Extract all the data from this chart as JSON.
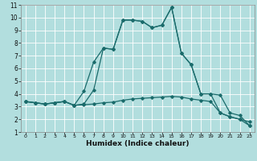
{
  "xlabel": "Humidex (Indice chaleur)",
  "background_color": "#b2dede",
  "grid_color": "#ffffff",
  "line_color": "#1a6b6b",
  "xlim": [
    -0.5,
    23.5
  ],
  "ylim": [
    1,
    11
  ],
  "xticks": [
    0,
    1,
    2,
    3,
    4,
    5,
    6,
    7,
    8,
    9,
    10,
    11,
    12,
    13,
    14,
    15,
    16,
    17,
    18,
    19,
    20,
    21,
    22,
    23
  ],
  "yticks": [
    1,
    2,
    3,
    4,
    5,
    6,
    7,
    8,
    9,
    10,
    11
  ],
  "series1_x": [
    0,
    1,
    2,
    3,
    4,
    5,
    6,
    7,
    8,
    9,
    10,
    11,
    12,
    13,
    14,
    15,
    16,
    17,
    18,
    19,
    20,
    21,
    22,
    23
  ],
  "series1_y": [
    3.4,
    3.3,
    3.2,
    3.3,
    3.4,
    3.1,
    3.15,
    3.2,
    3.3,
    3.35,
    3.5,
    3.6,
    3.65,
    3.7,
    3.75,
    3.8,
    3.75,
    3.6,
    3.5,
    3.4,
    2.5,
    2.2,
    2.0,
    1.8
  ],
  "series2_x": [
    0,
    1,
    2,
    3,
    4,
    5,
    6,
    7,
    8,
    9,
    10,
    11,
    12,
    13,
    14,
    15,
    16,
    17,
    18,
    19,
    20,
    21,
    22,
    23
  ],
  "series2_y": [
    3.4,
    3.3,
    3.2,
    3.3,
    3.4,
    3.1,
    4.2,
    6.5,
    7.6,
    7.5,
    9.8,
    9.8,
    9.7,
    9.2,
    9.4,
    10.8,
    7.2,
    6.3,
    4.0,
    4.0,
    3.9,
    2.5,
    2.3,
    1.5
  ],
  "series3_x": [
    0,
    1,
    2,
    3,
    4,
    5,
    6,
    7,
    8,
    9,
    10,
    11,
    12,
    13,
    14,
    15,
    16,
    17,
    18,
    19,
    20,
    21,
    22,
    23
  ],
  "series3_y": [
    3.4,
    3.3,
    3.2,
    3.3,
    3.4,
    3.1,
    3.2,
    4.3,
    7.6,
    7.5,
    9.8,
    9.8,
    9.7,
    9.2,
    9.4,
    10.8,
    7.2,
    6.3,
    4.0,
    4.0,
    2.5,
    2.2,
    2.0,
    1.5
  ],
  "xlabel_fontsize": 6.5,
  "tick_fontsize_x": 4.5,
  "tick_fontsize_y": 5.5,
  "linewidth": 0.9,
  "markersize": 1.8
}
